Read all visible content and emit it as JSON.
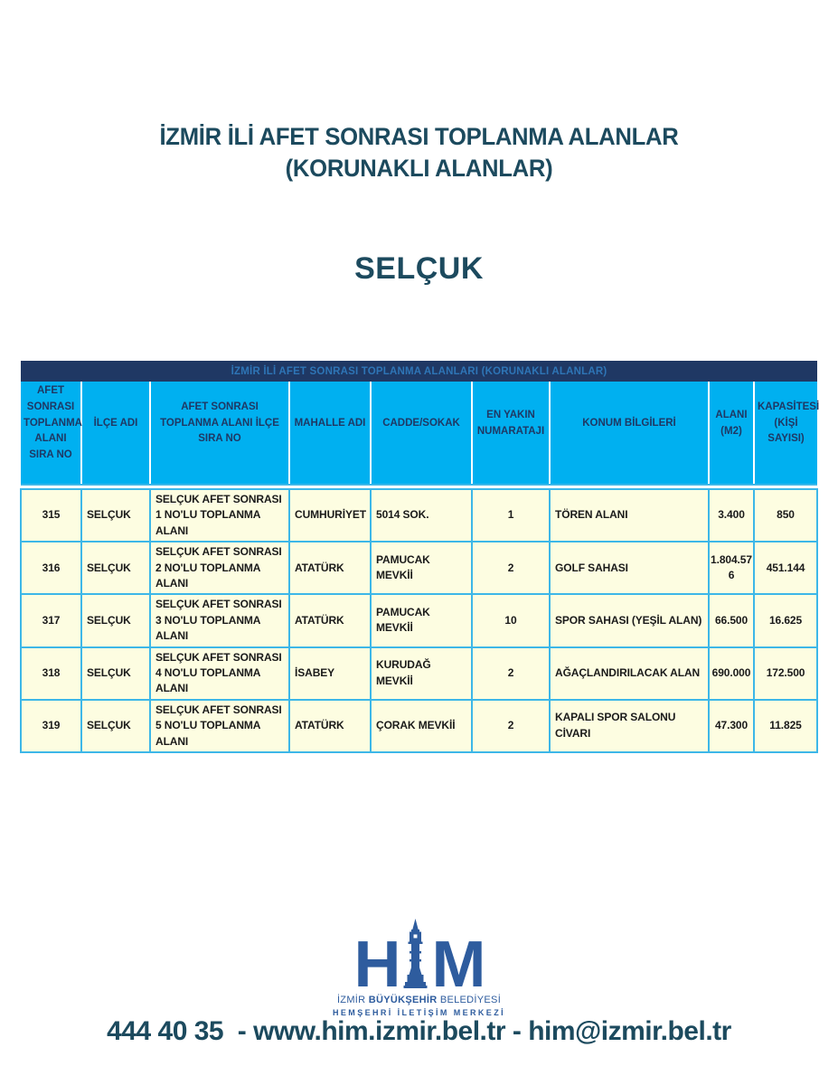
{
  "title": {
    "line1": "İZMİR İLİ AFET SONRASI TOPLANMA ALANLAR",
    "line2": "(KORUNAKLI ALANLAR)"
  },
  "district": "SELÇUK",
  "table": {
    "banner": "İZMİR İLİ AFET SONRASI TOPLANMA ALANLARI (KORUNAKLI ALANLAR)",
    "columns": [
      "AFET SONRASI TOPLANMA ALANI SIRA NO",
      "İLÇE ADI",
      "AFET SONRASI TOPLANMA ALANI İLÇE SIRA NO",
      "MAHALLE ADI",
      "CADDE/SOKAK",
      "EN YAKIN NUMARATAJI",
      "KONUM BİLGİLERİ",
      "ALANI (M2)",
      "KAPASİTESİ (KİŞİ SAYISI)"
    ],
    "rows": [
      [
        "315",
        "SELÇUK",
        "SELÇUK AFET SONRASI 1 NO'LU TOPLANMA ALANI",
        "CUMHURİYET",
        "5014 SOK.",
        "1",
        "TÖREN ALANI",
        "3.400",
        "850"
      ],
      [
        "316",
        "SELÇUK",
        "SELÇUK AFET SONRASI 2 NO'LU TOPLANMA ALANI",
        "ATATÜRK",
        "PAMUCAK MEVKİİ",
        "2",
        "GOLF SAHASI",
        "1.804.576",
        "451.144"
      ],
      [
        "317",
        "SELÇUK",
        "SELÇUK AFET SONRASI 3 NO'LU TOPLANMA ALANI",
        "ATATÜRK",
        "PAMUCAK MEVKİİ",
        "10",
        "SPOR SAHASI (YEŞİL ALAN)",
        "66.500",
        "16.625"
      ],
      [
        "318",
        "SELÇUK",
        "SELÇUK AFET SONRASI 4 NO'LU TOPLANMA ALANI",
        "İSABEY",
        "KURUDAĞ MEVKİİ",
        "2",
        "AĞAÇLANDIRILACAK ALAN",
        "690.000",
        "172.500"
      ],
      [
        "319",
        "SELÇUK",
        "SELÇUK AFET SONRASI 5 NO'LU TOPLANMA ALANI",
        "ATATÜRK",
        "ÇORAK MEVKİİ",
        "2",
        "KAPALI SPOR SALONU CİVARI",
        "47.300",
        "11.825"
      ]
    ]
  },
  "logo": {
    "letter_left": "H",
    "letter_right": "M",
    "tower_icon": "clock-tower-icon",
    "line1_regular1": "İZMİR",
    "line1_bold": "BÜYÜKŞEHİR",
    "line1_regular2": "BELEDİYESİ",
    "line2": "HEMŞEHRİ İLETİŞİM MERKEZİ"
  },
  "footer": {
    "text": "444 40 35  - www.him.izmir.bel.tr - him@izmir.bel.tr"
  },
  "colors": {
    "teal-text": "#1c4a5e",
    "navy": "#1f3864",
    "band-text": "#2e75b6",
    "header-blue": "#00b0f0",
    "row-yellow": "#fdfde1",
    "grid-cyan": "#3db7e8",
    "logo-blue": "#2e5c9e",
    "page-bg": "#ffffff"
  }
}
